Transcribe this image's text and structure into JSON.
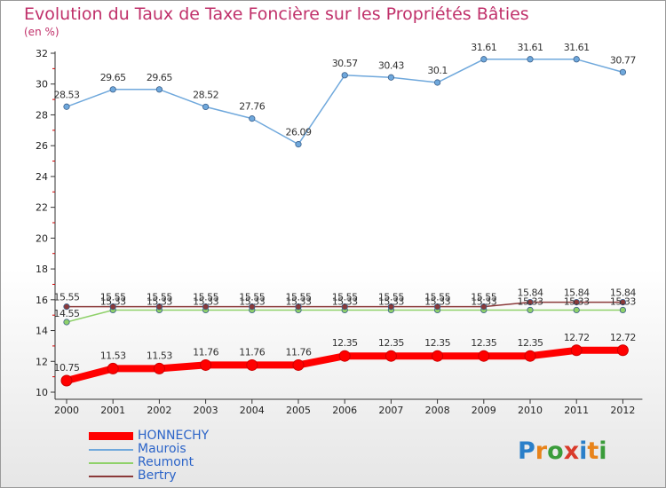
{
  "header": {
    "title": "Evolution du Taux de Taxe Foncière sur les Propriétés Bâties",
    "subtitle": "(en %)"
  },
  "branding": {
    "logo_text": "Proxiti"
  },
  "chart_data": {
    "type": "line",
    "x": [
      "2000",
      "2001",
      "2002",
      "2003",
      "2004",
      "2005",
      "2006",
      "2007",
      "2008",
      "2009",
      "2010",
      "2011",
      "2012"
    ],
    "ylim": [
      10,
      32
    ],
    "yticks": [
      10,
      12,
      14,
      16,
      18,
      20,
      22,
      24,
      26,
      28,
      30,
      32
    ],
    "grid": false,
    "legend_position": "bottom-left",
    "series": [
      {
        "name": "HONNECHY",
        "color": "#ff0000",
        "values": [
          10.75,
          11.53,
          11.53,
          11.76,
          11.76,
          11.76,
          12.35,
          12.35,
          12.35,
          12.35,
          12.35,
          12.72,
          12.72
        ],
        "labels": [
          "10.75",
          "11.53",
          "11.53",
          "11.76",
          "11.76",
          "11.76",
          "12.35",
          "12.35",
          "12.35",
          "12.35",
          "12.35",
          "12.72",
          "12.72"
        ]
      },
      {
        "name": "Maurois",
        "color": "#6fa8dc",
        "values": [
          28.53,
          29.65,
          29.65,
          28.52,
          27.76,
          26.09,
          30.57,
          30.43,
          30.1,
          31.61,
          31.61,
          31.61,
          30.77
        ],
        "labels": [
          "28.53",
          "29.65",
          "29.65",
          "28.52",
          "27.76",
          "26.09",
          "30.57",
          "30.43",
          "30.1",
          "31.61",
          "31.61",
          "31.61",
          "30.77"
        ]
      },
      {
        "name": "Reumont",
        "color": "#8fd16a",
        "values": [
          14.55,
          15.33,
          15.33,
          15.33,
          15.33,
          15.33,
          15.33,
          15.33,
          15.33,
          15.33,
          15.33,
          15.33,
          15.33
        ],
        "labels": [
          "14.55",
          "15.33",
          "15.33",
          "15.33",
          "15.33",
          "15.33",
          "15.33",
          "15.33",
          "15.33",
          "15.33",
          "15.33",
          "15.33",
          "15.33"
        ]
      },
      {
        "name": "Bertry",
        "color": "#8b3a3a",
        "values": [
          15.55,
          15.55,
          15.55,
          15.55,
          15.55,
          15.55,
          15.55,
          15.55,
          15.55,
          15.55,
          15.84,
          15.84,
          15.84
        ],
        "labels": [
          "15.55",
          "15.55",
          "15.55",
          "15.55",
          "15.55",
          "15.55",
          "15.55",
          "15.55",
          "15.55",
          "15.55",
          "15.84",
          "15.84",
          "15.84"
        ]
      }
    ]
  }
}
